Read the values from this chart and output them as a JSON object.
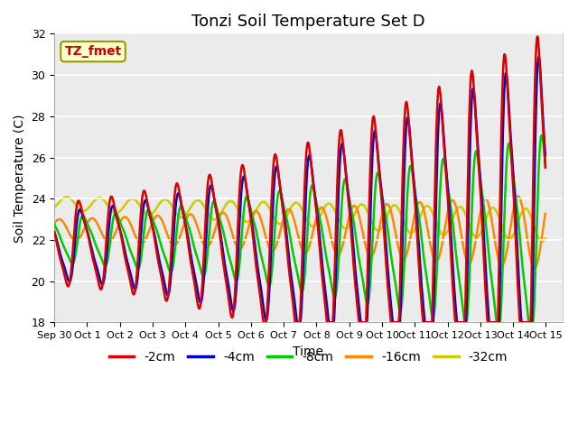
{
  "title": "Tonzi Soil Temperature Set D",
  "xlabel": "Time",
  "ylabel": "Soil Temperature (C)",
  "ylim": [
    18,
    32
  ],
  "xlim": [
    0,
    15.5
  ],
  "xtick_labels": [
    "Sep 30",
    "Oct 1",
    "Oct 2",
    "Oct 3",
    "Oct 4",
    "Oct 5",
    "Oct 6",
    "Oct 7",
    "Oct 8",
    "Oct 9",
    "Oct 10",
    "Oct 11",
    "Oct 12",
    "Oct 13",
    "Oct 14",
    "Oct 15"
  ],
  "xtick_positions": [
    0,
    1,
    2,
    3,
    4,
    5,
    6,
    7,
    8,
    9,
    10,
    11,
    12,
    13,
    14,
    15
  ],
  "ytick_positions": [
    18,
    20,
    22,
    24,
    26,
    28,
    30,
    32
  ],
  "series_colors": [
    "#dd0000",
    "#0000cc",
    "#00cc00",
    "#ff8800",
    "#cccc00"
  ],
  "series_labels": [
    "-2cm",
    "-4cm",
    "-8cm",
    "-16cm",
    "-32cm"
  ],
  "annotation_text": "TZ_fmet",
  "annotation_color": "#cc0000",
  "annotation_bg": "#ffffcc",
  "annotation_border": "#999900",
  "plot_bg_color": "#ebebeb",
  "title_fontsize": 13,
  "axis_label_fontsize": 10,
  "tick_fontsize": 9,
  "legend_fontsize": 10,
  "linewidth": 1.8
}
